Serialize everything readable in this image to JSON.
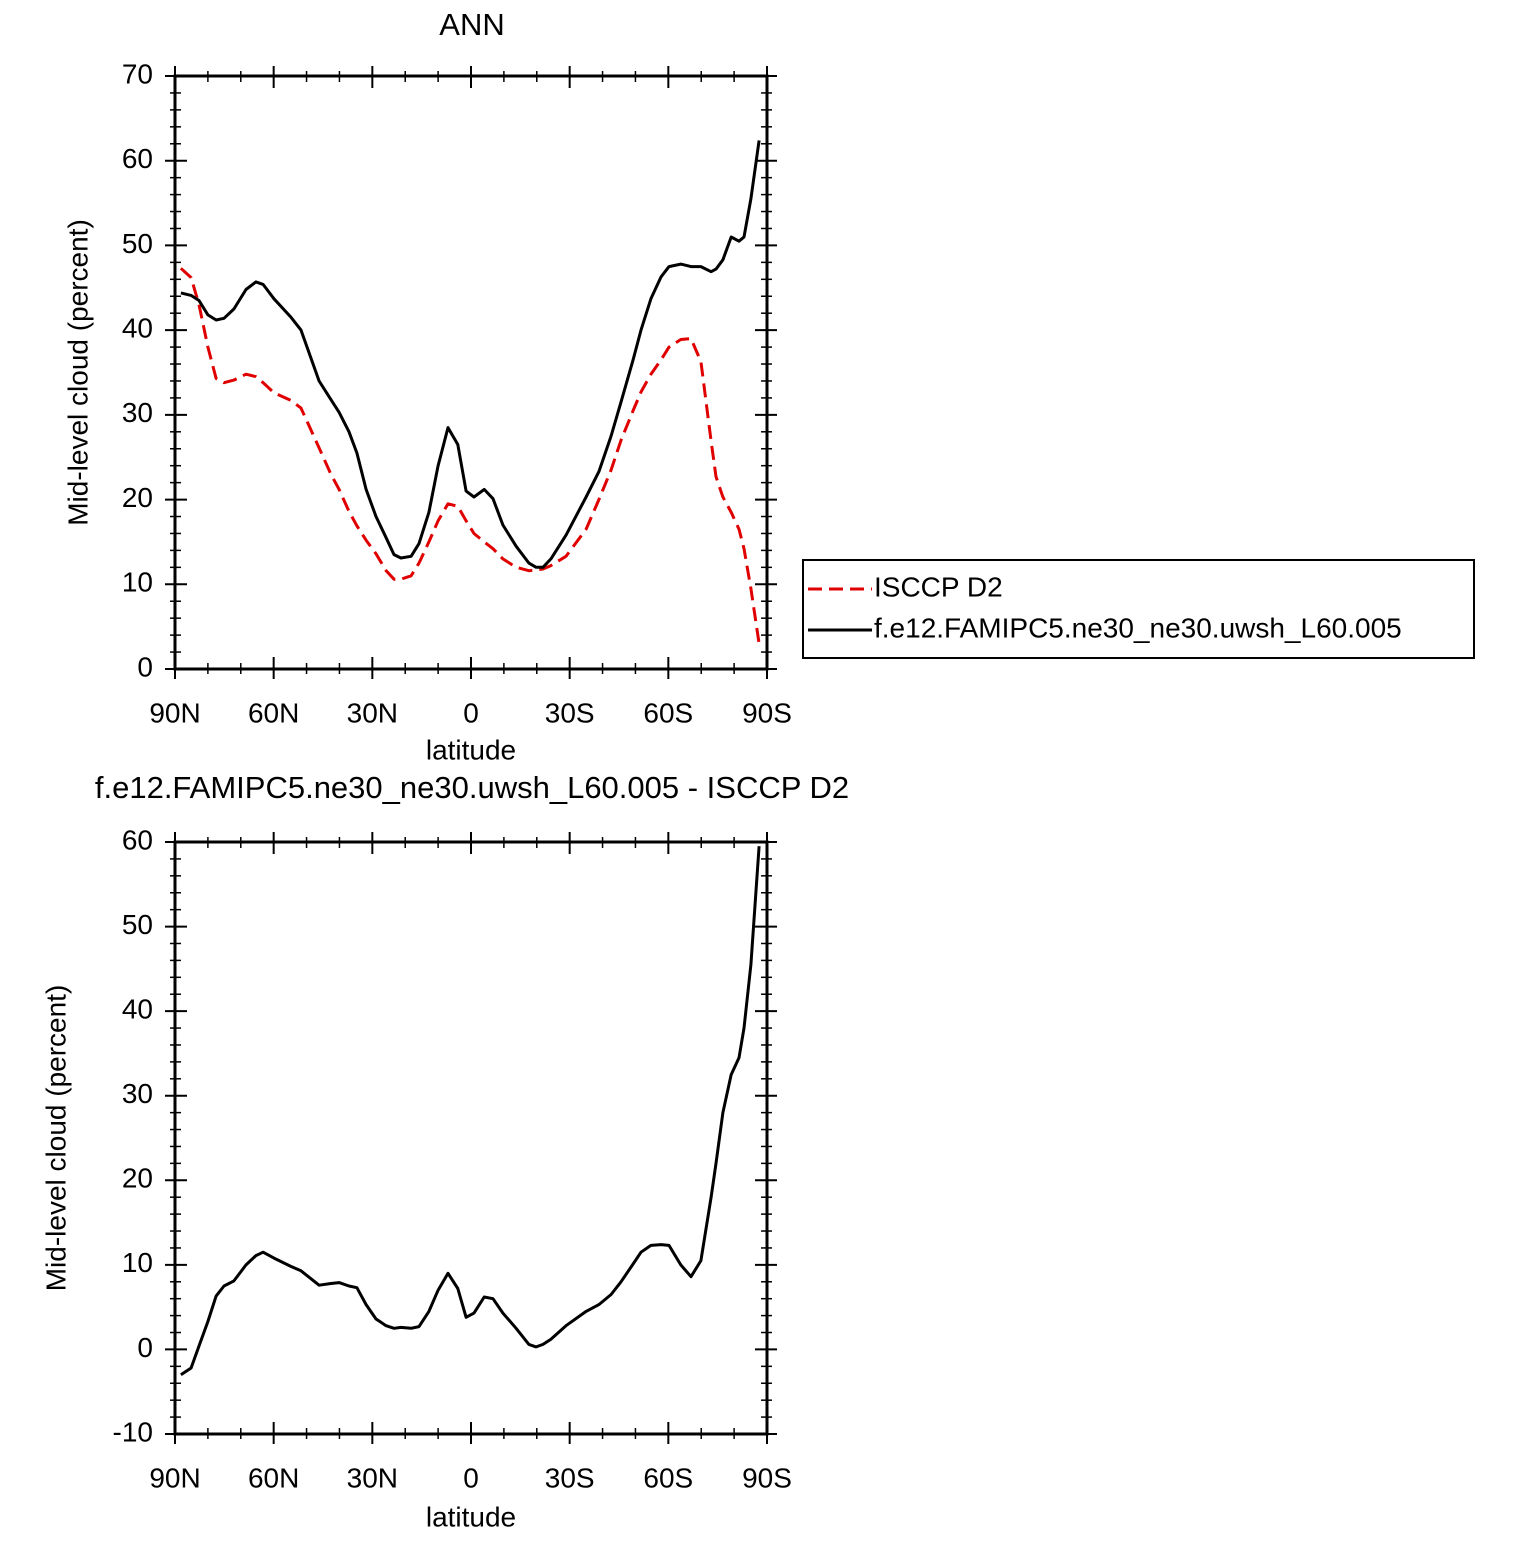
{
  "chart_data": [
    {
      "type": "line",
      "title": "ANN",
      "xlabel": "latitude",
      "ylabel": "Mid-level cloud (percent)",
      "x": [
        88.2,
        85.1,
        82.7,
        80.0,
        77.5,
        75.1,
        72.1,
        68.4,
        65.4,
        63.2,
        59.9,
        54.7,
        51.7,
        46.2,
        42.6,
        40.1,
        37.1,
        34.7,
        31.9,
        28.9,
        25.8,
        23.4,
        21.3,
        18.2,
        15.8,
        12.8,
        10.0,
        7.0,
        4.0,
        1.5,
        -0.9,
        -4.0,
        -6.7,
        -9.7,
        -13.7,
        -17.6,
        -19.8,
        -21.9,
        -24.3,
        -28.9,
        -35.0,
        -38.9,
        -42.6,
        -45.6,
        -49.3,
        -51.7,
        -54.7,
        -57.8,
        -60.2,
        -63.8,
        -66.9,
        -69.9,
        -73.0,
        -74.5,
        -76.6,
        -79.1,
        -81.5,
        -83.0,
        -85.1,
        -87.6
      ],
      "series": [
        {
          "name": "ISCCP D2",
          "color": "#e00000",
          "dash": true,
          "values": [
            47.3,
            46.2,
            43,
            38,
            34.3,
            33.8,
            34.1,
            34.8,
            34.5,
            33.8,
            32.6,
            31.7,
            30.8,
            26.1,
            23,
            21.2,
            18.6,
            16.9,
            15.2,
            13.6,
            11.6,
            10.6,
            10.6,
            11,
            12.5,
            15,
            17.5,
            19.5,
            19.2,
            17.5,
            16,
            15,
            14.2,
            13,
            12,
            11.6,
            11.7,
            11.8,
            12.2,
            13.3,
            16.5,
            20,
            23.5,
            27,
            30.5,
            32.7,
            34.8,
            36.5,
            38,
            38.9,
            39,
            36.3,
            26.9,
            22.7,
            20.3,
            18.5,
            16.5,
            14.2,
            9.5,
            3
          ]
        },
        {
          "name": "f.e12.FAMIPC5.ne30_ne30.uwsh_L60.005",
          "color": "#000000",
          "values": [
            44.4,
            44.1,
            43.5,
            41.8,
            41.2,
            41.4,
            42.5,
            44.8,
            45.7,
            45.4,
            43.7,
            41.5,
            40,
            34,
            31.8,
            30.3,
            28,
            25.5,
            21.2,
            18,
            15.5,
            13.5,
            13.1,
            13.3,
            14.8,
            18.5,
            24,
            28.5,
            26.5,
            21,
            20.3,
            21.2,
            20.1,
            17,
            14.5,
            12.5,
            12,
            12,
            13,
            15.8,
            20.3,
            23.3,
            27.5,
            31.5,
            36.5,
            40,
            43.7,
            46.3,
            47.5,
            47.8,
            47.5,
            47.5,
            46.9,
            47.2,
            48.3,
            51,
            50.5,
            51,
            55.5,
            62.4
          ]
        }
      ],
      "xlim": [
        90,
        -90
      ],
      "xticks": [
        {
          "value": 90,
          "label": "90N"
        },
        {
          "value": 60,
          "label": "60N"
        },
        {
          "value": 30,
          "label": "30N"
        },
        0,
        {
          "value": -30,
          "label": "30S"
        },
        {
          "value": -60,
          "label": "60S"
        },
        {
          "value": -90,
          "label": "90S"
        }
      ],
      "ylim": [
        0,
        70
      ],
      "yticks": [
        0,
        10,
        20,
        30,
        40,
        50,
        60,
        70
      ]
    },
    {
      "type": "line",
      "title": "f.e12.FAMIPC5.ne30_ne30.uwsh_L60.005 - ISCCP D2",
      "xlabel": "latitude",
      "ylabel": "Mid-level cloud (percent)",
      "x": [
        88.2,
        85.1,
        82.7,
        80.0,
        77.5,
        75.1,
        72.1,
        68.4,
        65.4,
        63.2,
        59.9,
        54.7,
        51.7,
        46.2,
        42.6,
        40.1,
        37.1,
        34.7,
        31.9,
        28.9,
        25.8,
        23.4,
        21.3,
        18.2,
        15.8,
        12.8,
        10.0,
        7.0,
        4.0,
        1.5,
        -0.9,
        -4.0,
        -6.7,
        -9.7,
        -13.7,
        -17.6,
        -19.8,
        -21.9,
        -24.3,
        -28.9,
        -35.0,
        -38.9,
        -42.6,
        -45.6,
        -49.3,
        -51.7,
        -54.7,
        -57.8,
        -60.2,
        -63.8,
        -66.9,
        -69.9,
        -73.0,
        -74.5,
        -76.6,
        -79.1,
        -81.5,
        -83.0,
        -85.1,
        -87.6
      ],
      "series": [
        {
          "color": "#000000",
          "values": [
            -3,
            -2.2,
            0.4,
            3.3,
            6.3,
            7.5,
            8.1,
            10,
            11.1,
            11.5,
            10.8,
            9.8,
            9.3,
            7.6,
            7.8,
            7.9,
            7.5,
            7.3,
            5.3,
            3.6,
            2.8,
            2.5,
            2.6,
            2.5,
            2.7,
            4.5,
            7,
            9,
            7.2,
            3.8,
            4.3,
            6.2,
            6,
            4.3,
            2.5,
            0.6,
            0.3,
            0.6,
            1.2,
            2.8,
            4.5,
            5.3,
            6.5,
            8,
            10.1,
            11.5,
            12.3,
            12.4,
            12.3,
            10,
            8.6,
            10.5,
            18,
            22,
            28,
            32.5,
            34.5,
            38,
            45.5,
            59.5
          ]
        }
      ],
      "xlim": [
        90,
        -90
      ],
      "xticks": [
        {
          "value": 90,
          "label": "90N"
        },
        {
          "value": 60,
          "label": "60N"
        },
        {
          "value": 30,
          "label": "30N"
        },
        0,
        {
          "value": -30,
          "label": "30S"
        },
        {
          "value": -60,
          "label": "60S"
        },
        {
          "value": -90,
          "label": "90S"
        }
      ],
      "ylim": [
        -10,
        60
      ],
      "yticks": [
        -10,
        0,
        10,
        20,
        30,
        40,
        50,
        60
      ]
    }
  ]
}
